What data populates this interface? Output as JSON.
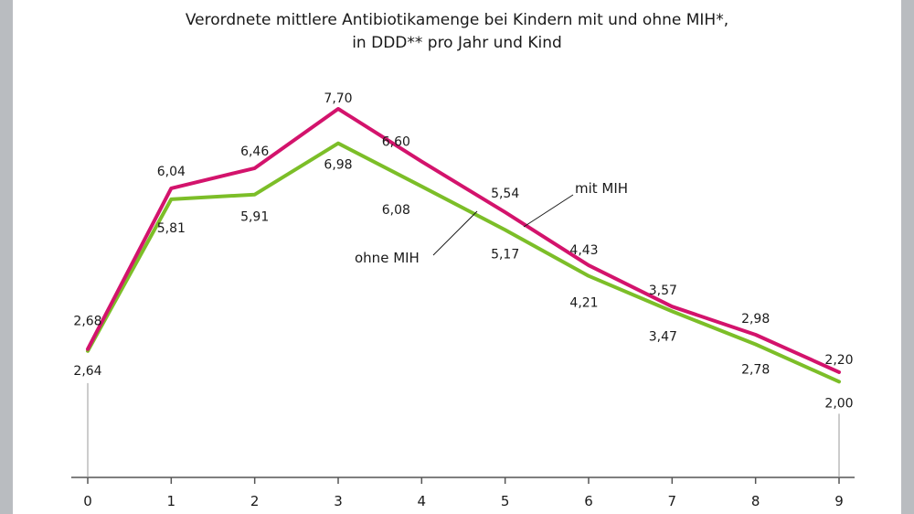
{
  "colors": {
    "mit_mih": "#d3136c",
    "ohne_mih": "#7cbe28",
    "axis": "#555555",
    "frame": "#b9bcc0"
  },
  "chart_data": {
    "type": "line",
    "title": [
      "Verordnete mittlere Antibiotikamenge bei Kindern mit und ohne MIH*,",
      "in DDD** pro Jahr und Kind"
    ],
    "xlabel": "",
    "ylabel": "",
    "x": [
      0,
      1,
      2,
      3,
      4,
      5,
      6,
      7,
      8,
      9
    ],
    "tick_labels": [
      "0",
      "1",
      "2",
      "3",
      "4",
      "5",
      "6",
      "7",
      "8",
      "9"
    ],
    "ylim": [
      0,
      8.6
    ],
    "grid": false,
    "series": [
      {
        "name": "mit MIH",
        "color": "#d3136c",
        "values": [
          2.68,
          6.04,
          6.46,
          7.7,
          6.6,
          5.54,
          4.43,
          3.57,
          2.98,
          2.2
        ],
        "labels": [
          "2,68",
          "6,04",
          "6,46",
          "7,70",
          "6,60",
          "5,54",
          "4,43",
          "3,57",
          "2,98",
          "2,20"
        ]
      },
      {
        "name": "ohne MIH",
        "color": "#7cbe28",
        "values": [
          2.64,
          5.81,
          5.91,
          6.98,
          6.08,
          5.17,
          4.21,
          3.47,
          2.78,
          2.0
        ],
        "labels": [
          "2,64",
          "5,81",
          "5,91",
          "6,98",
          "6,08",
          "5,17",
          "4,21",
          "3,47",
          "2,78",
          "2,00"
        ]
      }
    ]
  }
}
